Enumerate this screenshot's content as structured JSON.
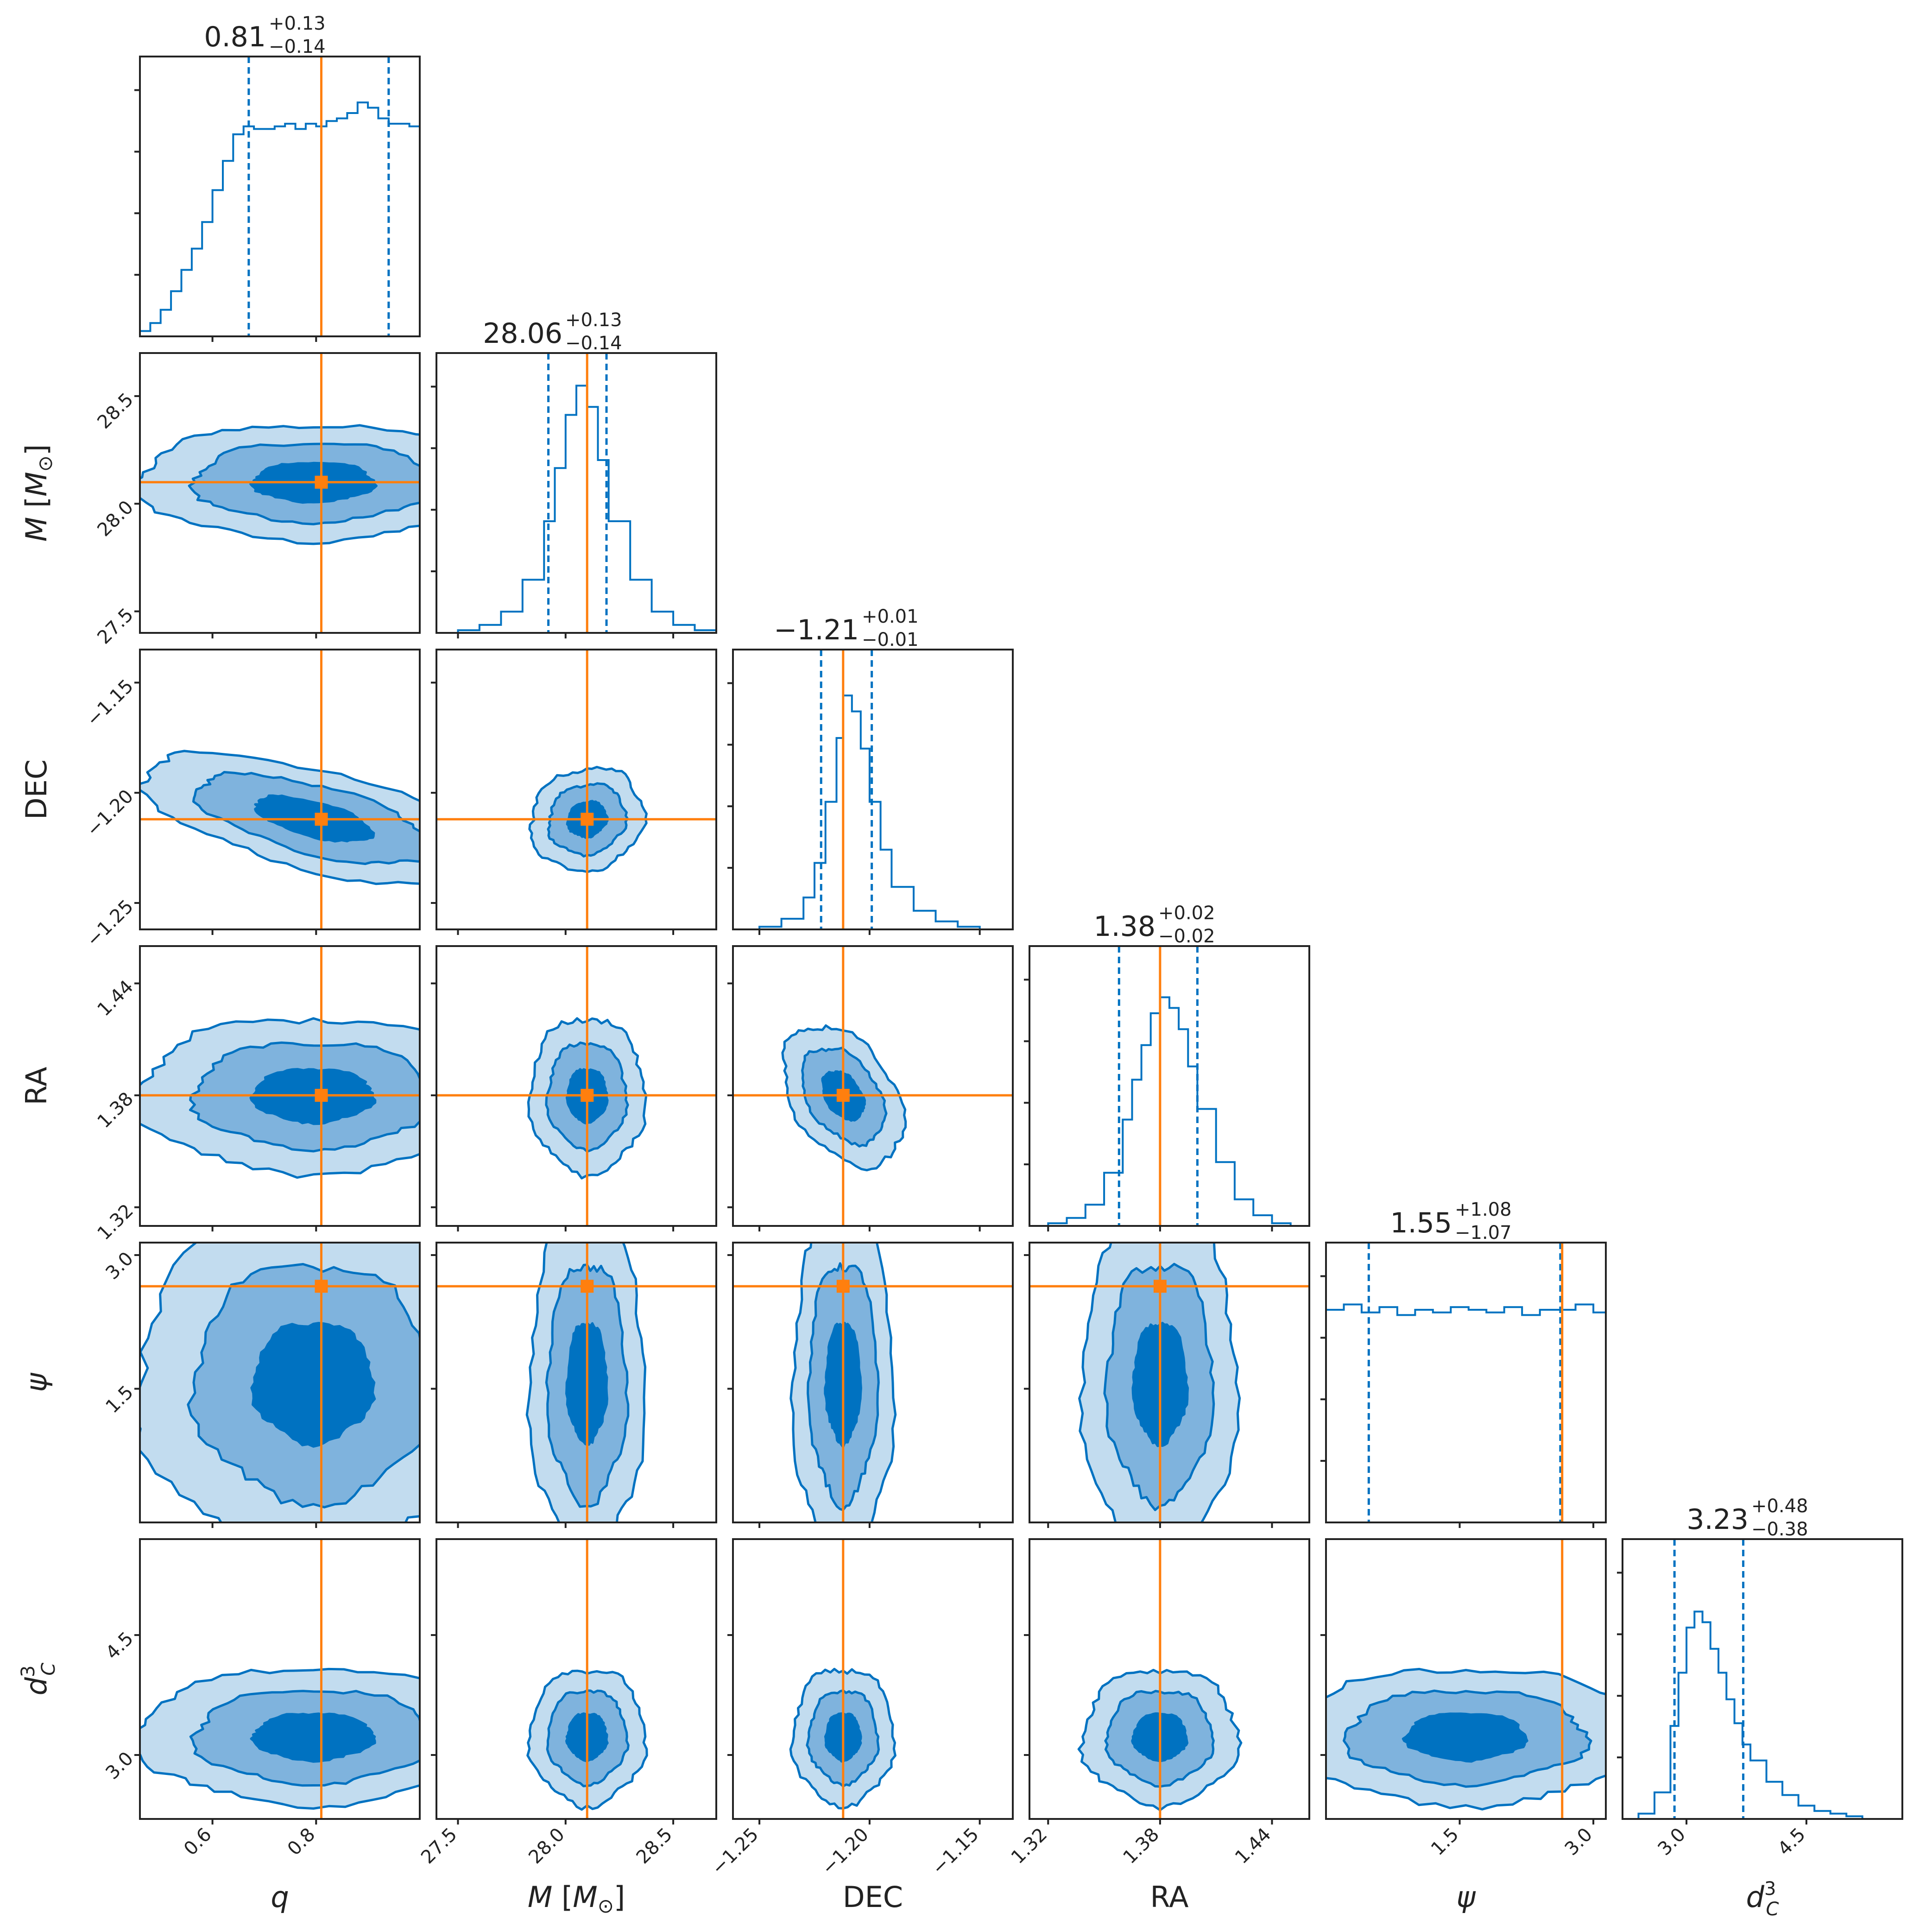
{
  "chart_data": {
    "type": "corner",
    "parameters": [
      {
        "key": "q",
        "label": "q",
        "truth": 0.81,
        "range": [
          0.46,
          1.0
        ],
        "ticks": [
          0.6,
          0.8
        ],
        "tick_labels": [
          "0.6",
          "0.8"
        ],
        "title": {
          "median": "0.81",
          "plus": "+0.13",
          "minus": "−0.14"
        },
        "quantiles": [
          0.67,
          0.94
        ],
        "hist": {
          "x": [
            0.46,
            0.48,
            0.5,
            0.52,
            0.54,
            0.56,
            0.58,
            0.6,
            0.62,
            0.64,
            0.66,
            0.68,
            0.7,
            0.72,
            0.74,
            0.76,
            0.78,
            0.8,
            0.82,
            0.84,
            0.86,
            0.88,
            0.9,
            0.92,
            0.94,
            0.96,
            0.98,
            1.0
          ],
          "y": [
            0.02,
            0.05,
            0.1,
            0.17,
            0.25,
            0.33,
            0.43,
            0.55,
            0.66,
            0.76,
            0.79,
            0.78,
            0.78,
            0.79,
            0.8,
            0.78,
            0.8,
            0.79,
            0.81,
            0.82,
            0.84,
            0.88,
            0.86,
            0.82,
            0.8,
            0.8,
            0.79,
            0.78
          ]
        }
      },
      {
        "key": "M",
        "label": "M [M⊙]",
        "truth": 28.1,
        "range": [
          27.4,
          28.7
        ],
        "ticks": [
          27.5,
          28.0,
          28.5
        ],
        "tick_labels": [
          "27.5",
          "28.0",
          "28.5"
        ],
        "title": {
          "median": "28.06",
          "plus": "+0.13",
          "minus": "−0.14"
        },
        "quantiles": [
          27.92,
          28.19
        ],
        "hist": {
          "x": [
            27.4,
            27.5,
            27.6,
            27.7,
            27.8,
            27.9,
            27.95,
            28.0,
            28.05,
            28.1,
            28.15,
            28.2,
            28.3,
            28.4,
            28.5,
            28.6,
            28.7
          ],
          "y": [
            0.0,
            0.01,
            0.03,
            0.08,
            0.2,
            0.42,
            0.62,
            0.82,
            0.93,
            0.85,
            0.65,
            0.42,
            0.2,
            0.08,
            0.03,
            0.01,
            0.0
          ]
        }
      },
      {
        "key": "DEC",
        "label": "DEC",
        "truth": -1.212,
        "range": [
          -1.262,
          -1.135
        ],
        "ticks": [
          -1.25,
          -1.2,
          -1.15
        ],
        "tick_labels": [
          "−1.25",
          "−1.20",
          "−1.15"
        ],
        "title": {
          "median": "−1.21",
          "plus": "+0.01",
          "minus": "−0.01"
        },
        "quantiles": [
          -1.222,
          -1.199
        ],
        "hist": {
          "x": [
            -1.262,
            -1.25,
            -1.24,
            -1.23,
            -1.225,
            -1.22,
            -1.215,
            -1.212,
            -1.208,
            -1.204,
            -1.2,
            -1.195,
            -1.19,
            -1.18,
            -1.17,
            -1.16,
            -1.15,
            -1.135
          ],
          "y": [
            0.0,
            0.01,
            0.04,
            0.12,
            0.25,
            0.48,
            0.72,
            0.88,
            0.82,
            0.68,
            0.48,
            0.3,
            0.16,
            0.07,
            0.03,
            0.01,
            0.0,
            0.0
          ]
        }
      },
      {
        "key": "RA",
        "label": "RA",
        "truth": 1.38,
        "range": [
          1.31,
          1.46
        ],
        "ticks": [
          1.32,
          1.38,
          1.44
        ],
        "tick_labels": [
          "1.32",
          "1.38",
          "1.44"
        ],
        "title": {
          "median": "1.38",
          "plus": "+0.02",
          "minus": "−0.02"
        },
        "quantiles": [
          1.358,
          1.4
        ],
        "hist": {
          "x": [
            1.31,
            1.32,
            1.33,
            1.34,
            1.35,
            1.36,
            1.365,
            1.37,
            1.375,
            1.38,
            1.385,
            1.39,
            1.395,
            1.4,
            1.41,
            1.42,
            1.43,
            1.44,
            1.45,
            1.46
          ],
          "y": [
            0.0,
            0.01,
            0.03,
            0.08,
            0.2,
            0.4,
            0.55,
            0.68,
            0.8,
            0.86,
            0.82,
            0.74,
            0.6,
            0.44,
            0.24,
            0.1,
            0.04,
            0.01,
            0.0,
            0.0
          ]
        }
      },
      {
        "key": "psi",
        "label": "ψ",
        "truth": 2.65,
        "range": [
          0.0,
          3.14
        ],
        "ticks": [
          1.5,
          3.0
        ],
        "tick_labels": [
          "1.5",
          "3.0"
        ],
        "title": {
          "median": "1.55",
          "plus": "+1.08",
          "minus": "−1.07"
        },
        "quantiles": [
          0.48,
          2.63
        ],
        "hist": {
          "x": [
            0.0,
            0.2,
            0.4,
            0.6,
            0.8,
            1.0,
            1.2,
            1.4,
            1.6,
            1.8,
            2.0,
            2.2,
            2.4,
            2.6,
            2.8,
            3.0,
            3.14
          ],
          "y": [
            0.8,
            0.82,
            0.79,
            0.81,
            0.78,
            0.8,
            0.79,
            0.81,
            0.8,
            0.79,
            0.81,
            0.78,
            0.8,
            0.8,
            0.82,
            0.79,
            0.78
          ]
        }
      },
      {
        "key": "dC3",
        "label": "d_C^3",
        "truth": null,
        "range": [
          2.2,
          5.7
        ],
        "ticks": [
          3.0,
          4.5
        ],
        "tick_labels": [
          "3.0",
          "4.5"
        ],
        "title": {
          "median": "3.23",
          "plus": "+0.48",
          "minus": "−0.38"
        },
        "quantiles": [
          2.85,
          3.71
        ],
        "hist": {
          "x": [
            2.2,
            2.4,
            2.6,
            2.8,
            2.9,
            3.0,
            3.1,
            3.2,
            3.3,
            3.4,
            3.5,
            3.6,
            3.7,
            3.8,
            4.0,
            4.2,
            4.4,
            4.6,
            4.8,
            5.0,
            5.2,
            5.4,
            5.7
          ],
          "y": [
            0.0,
            0.02,
            0.1,
            0.35,
            0.55,
            0.72,
            0.78,
            0.74,
            0.64,
            0.55,
            0.45,
            0.36,
            0.28,
            0.22,
            0.14,
            0.09,
            0.05,
            0.03,
            0.02,
            0.01,
            0.0,
            0.0,
            0.0
          ]
        }
      }
    ],
    "colors": {
      "contour": "#0072c1",
      "truth": "#ff7f0e",
      "axis": "#222222"
    }
  }
}
